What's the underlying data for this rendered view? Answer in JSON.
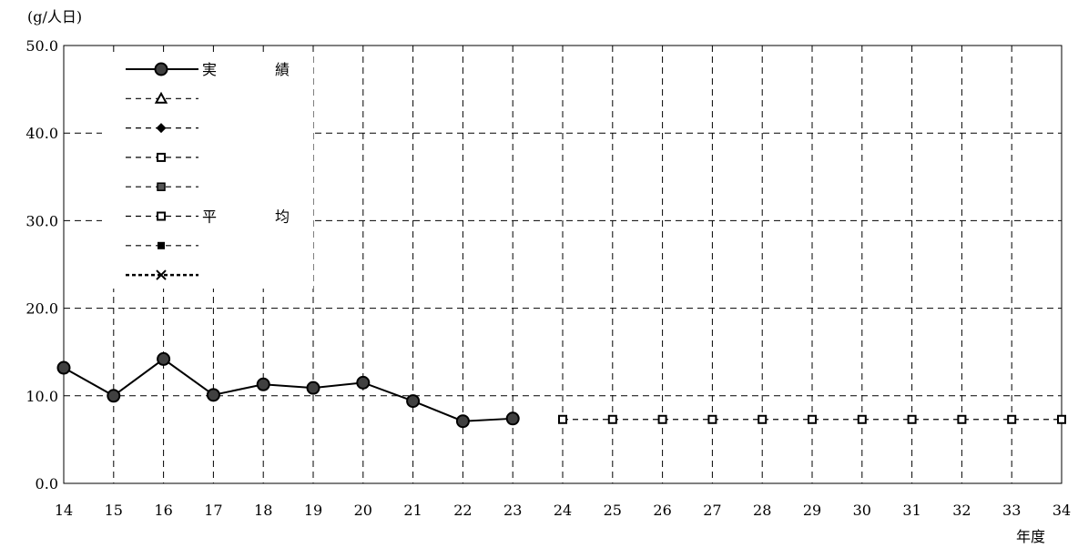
{
  "chart_data": {
    "type": "line",
    "y_unit_label": "(g/人日)",
    "x_axis_label": "年度",
    "x": [
      14,
      15,
      16,
      17,
      18,
      19,
      20,
      21,
      22,
      23,
      24,
      25,
      26,
      27,
      28,
      29,
      30,
      31,
      32,
      33,
      34
    ],
    "x_tick_labels": [
      "14",
      "15",
      "16",
      "17",
      "18",
      "19",
      "20",
      "21",
      "22",
      "23",
      "24",
      "25",
      "26",
      "27",
      "28",
      "29",
      "30",
      "31",
      "32",
      "33",
      "34"
    ],
    "y_tick_labels": [
      "0.0",
      "10.0",
      "20.0",
      "30.0",
      "40.0",
      "50.0"
    ],
    "ylim": [
      0,
      50
    ],
    "grid": true,
    "grid_style": "dashed",
    "legend_position": "top-left",
    "series": [
      {
        "name": "実　　　　績",
        "line": "solid",
        "marker": "circle-filled",
        "color": "#000000",
        "marker_color": "#404040",
        "x": [
          14,
          15,
          16,
          17,
          18,
          19,
          20,
          21,
          22,
          23
        ],
        "values": [
          13.2,
          10.0,
          14.2,
          10.1,
          11.3,
          10.9,
          11.5,
          9.4,
          7.1,
          7.4
        ]
      },
      {
        "name": "",
        "line": "dashed",
        "marker": "triangle-open",
        "color": "#000000",
        "x": [],
        "values": []
      },
      {
        "name": "",
        "line": "dashed",
        "marker": "diamond-filled",
        "color": "#000000",
        "x": [],
        "values": []
      },
      {
        "name": "",
        "line": "dashed",
        "marker": "square-open",
        "color": "#000000",
        "x": [],
        "values": []
      },
      {
        "name": "",
        "line": "dashed",
        "marker": "square-gray",
        "color": "#000000",
        "x": [],
        "values": []
      },
      {
        "name": "平　　　　均",
        "line": "dashed",
        "marker": "square-open",
        "color": "#000000",
        "x": [
          24,
          25,
          26,
          27,
          28,
          29,
          30,
          31,
          32,
          33,
          34
        ],
        "values": [
          7.3,
          7.3,
          7.3,
          7.3,
          7.3,
          7.3,
          7.3,
          7.3,
          7.3,
          7.3,
          7.3
        ]
      },
      {
        "name": "",
        "line": "dashed",
        "marker": "square-filled",
        "color": "#000000",
        "x": [],
        "values": []
      },
      {
        "name": "",
        "line": "dotted-bold",
        "marker": "x-cross",
        "color": "#000000",
        "x": [],
        "values": []
      }
    ]
  }
}
